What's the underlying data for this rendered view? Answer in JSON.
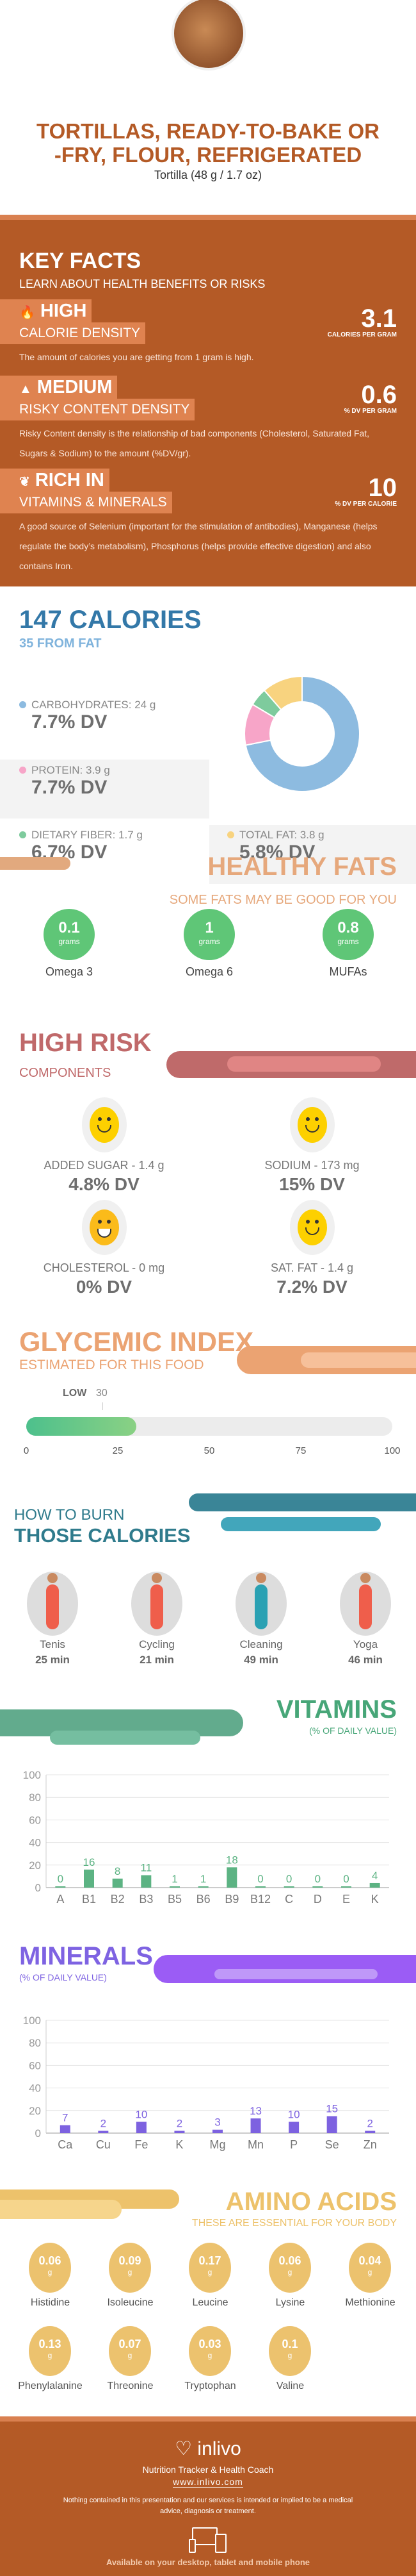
{
  "header": {
    "title_line1": "TORTILLAS, READY-TO-BAKE OR",
    "title_line2": "-FRY, FLOUR, REFRIGERATED",
    "serving": "Tortilla (48 g / 1.7 oz)"
  },
  "key_facts": {
    "title": "KEY FACTS",
    "subtitle": "LEARN ABOUT HEALTH BENEFITS OR RISKS",
    "items": [
      {
        "level": "HIGH",
        "label": "CALORIE DENSITY",
        "value": "3.1",
        "unit": "CALORIES PER GRAM",
        "icon": "flame-icon",
        "description": "The amount of calories you are getting from 1 gram is high."
      },
      {
        "level": "MEDIUM",
        "label": "RISKY CONTENT DENSITY",
        "value": "0.6",
        "unit": "% DV PER GRAM",
        "icon": "warning-icon",
        "description": "Risky Content density is the relationship of bad components (Cholesterol, Saturated Fat, Sugars & Sodium) to the amount (%DV/gr)."
      },
      {
        "level": "RICH  IN",
        "label": "VITAMINS & MINERALS",
        "value": "10",
        "unit": "% DV PER CALORIE",
        "icon": "leaf-icon",
        "description": "A good source of Selenium (important for the stimulation of antibodies), Manganese (helps regulate the body’s metabolism), Phosphorus (helps provide effective digestion) and also contains Iron."
      }
    ]
  },
  "calories": {
    "title": "147 CALORIES",
    "subtitle": "35 FROM FAT",
    "macros": [
      {
        "label": "CARBOHYDRATES: 24 g",
        "dv": "7.7% DV",
        "grams": 24,
        "color": "#8dbbe0"
      },
      {
        "label": "PROTEIN: 3.9 g",
        "dv": "7.7% DV",
        "grams": 3.9,
        "color": "#f7a5c8"
      },
      {
        "label": "DIETARY FIBER: 1.7 g",
        "dv": "6.7% DV",
        "grams": 1.7,
        "color": "#7ecb9d"
      },
      {
        "label": "TOTAL FAT: 3.8 g",
        "dv": "5.8% DV",
        "grams": 3.8,
        "color": "#f8d37f"
      }
    ]
  },
  "healthy_fats": {
    "title": "HEALTHY FATS",
    "subtitle": "SOME FATS MAY BE GOOD FOR YOU",
    "unit": "grams",
    "items": [
      {
        "value": "0.1",
        "label": "Omega 3"
      },
      {
        "value": "1",
        "label": "Omega 6"
      },
      {
        "value": "0.8",
        "label": "MUFAs"
      }
    ]
  },
  "high_risk": {
    "title": "HIGH RISK",
    "subtitle": "COMPONENTS",
    "items": [
      {
        "label": "ADDED SUGAR - 1.4 g",
        "dv": "4.8% DV",
        "icon": "smiley-icon"
      },
      {
        "label": "SODIUM - 173 mg",
        "dv": "15% DV",
        "icon": "smiley-icon"
      },
      {
        "label": "CHOLESTEROL - 0 mg",
        "dv": "0% DV",
        "icon": "grin-icon"
      },
      {
        "label": "SAT. FAT - 1.4 g",
        "dv": "7.2% DV",
        "icon": "smiley-icon"
      }
    ]
  },
  "glycemic": {
    "title": "GLYCEMIC INDEX",
    "subtitle": "ESTIMATED FOR THIS FOOD",
    "level": "LOW",
    "value": 30,
    "value_label": "30",
    "ticks": [
      "0",
      "25",
      "50",
      "75",
      "100"
    ]
  },
  "burn": {
    "title_line1": "HOW TO BURN",
    "title_line2": "THOSE CALORIES",
    "items": [
      {
        "label": "Tenis",
        "time": "25 min",
        "icon": "tennis-icon"
      },
      {
        "label": "Cycling",
        "time": "21 min",
        "icon": "cycling-icon"
      },
      {
        "label": "Cleaning",
        "time": "49 min",
        "icon": "cleaning-icon"
      },
      {
        "label": "Yoga",
        "time": "46 min",
        "icon": "yoga-icon"
      }
    ]
  },
  "chart_data": [
    {
      "type": "bar",
      "title": "VITAMINS",
      "subtitle": "(% OF DAILY VALUE)",
      "categories": [
        "A",
        "B1",
        "B2",
        "B3",
        "B5",
        "B6",
        "B9",
        "B12",
        "C",
        "D",
        "E",
        "K"
      ],
      "values": [
        0,
        16,
        8,
        11,
        1,
        1,
        18,
        0,
        0,
        0,
        0,
        4
      ],
      "ylim": [
        0,
        100
      ],
      "yticks": [
        "0",
        "20",
        "40",
        "60",
        "80",
        "100"
      ],
      "grid": true,
      "color": "#5cb383"
    },
    {
      "type": "bar",
      "title": "MINERALS",
      "subtitle": "(% OF DAILY VALUE)",
      "categories": [
        "Ca",
        "Cu",
        "Fe",
        "K",
        "Mg",
        "Mn",
        "P",
        "Se",
        "Zn"
      ],
      "values": [
        7,
        2,
        10,
        2,
        3,
        13,
        10,
        15,
        2
      ],
      "ylim": [
        0,
        100
      ],
      "yticks": [
        "0",
        "20",
        "40",
        "60",
        "80",
        "100"
      ],
      "grid": true,
      "color": "#7d62e0"
    }
  ],
  "amino": {
    "title": "AMINO ACIDS",
    "subtitle": "THESE ARE ESSENTIAL FOR YOUR BODY",
    "unit": "g",
    "items": [
      {
        "value": "0.06",
        "label": "Histidine"
      },
      {
        "value": "0.09",
        "label": "Isoleucine"
      },
      {
        "value": "0.17",
        "label": "Leucine"
      },
      {
        "value": "0.06",
        "label": "Lysine"
      },
      {
        "value": "0.04",
        "label": "Methionine"
      },
      {
        "value": "0.13",
        "label": "Phenylalanine"
      },
      {
        "value": "0.07",
        "label": "Threonine"
      },
      {
        "value": "0.03",
        "label": "Tryptophan"
      },
      {
        "value": "0.1",
        "label": "Valine"
      }
    ]
  },
  "footer": {
    "brand": "inlivo",
    "tagline": "Nutrition Tracker & Health Coach",
    "url": "www.inlivo.com",
    "disclaimer": "Nothing contained in this presentation and our services is intended or implied to be a medical advice, diagnosis or treatment.",
    "available": "Available on your desktop, tablet and mobile phone"
  }
}
